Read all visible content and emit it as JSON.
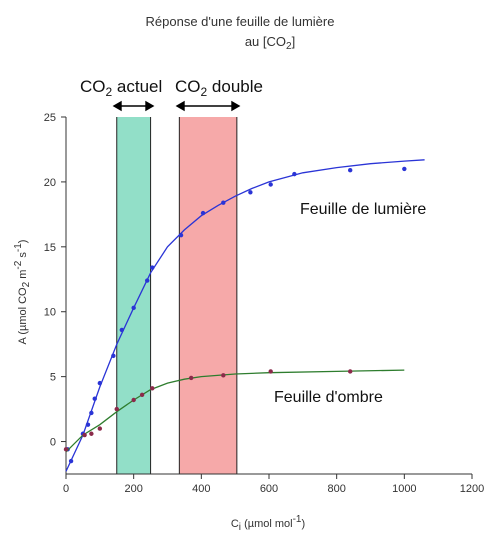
{
  "chart_data": {
    "type": "scatter",
    "title_line1": "Réponse d'une feuille de lumière",
    "title_line2_prefix": "au [CO",
    "title_line2_sub": "2",
    "title_line2_suffix": "]",
    "band_labels": {
      "current": {
        "prefix": "CO",
        "sub": "2",
        "suffix": " actuel"
      },
      "double": {
        "prefix": "CO",
        "sub": "2",
        "suffix": " double"
      }
    },
    "bands": [
      {
        "name": "current",
        "x_range": [
          150,
          250
        ],
        "color": "#7fd9be"
      },
      {
        "name": "double",
        "x_range": [
          335,
          505
        ],
        "color": "#f49a9a"
      }
    ],
    "ylabel_parts": {
      "a": "A (µmol CO",
      "b": "2",
      "c": " m",
      "d": "-2",
      "e": " s",
      "f": "-1",
      "g": ")"
    },
    "xlabel_parts": {
      "a": "C",
      "b": "i",
      "c": " (µmol mol",
      "d": "-1",
      "e": ")"
    },
    "xlim": [
      0,
      1200
    ],
    "ylim": [
      -2.5,
      25
    ],
    "xticks": [
      0,
      200,
      400,
      600,
      800,
      1000,
      1200
    ],
    "yticks": [
      0,
      5,
      10,
      15,
      20,
      25
    ],
    "series": [
      {
        "name": "Feuille de lumière",
        "color": "#2a34d6",
        "points": [
          [
            5,
            -0.6
          ],
          [
            15,
            -1.5
          ],
          [
            50,
            0.6
          ],
          [
            65,
            1.3
          ],
          [
            75,
            2.2
          ],
          [
            85,
            3.3
          ],
          [
            100,
            4.5
          ],
          [
            140,
            6.6
          ],
          [
            165,
            8.6
          ],
          [
            200,
            10.3
          ],
          [
            240,
            12.4
          ],
          [
            255,
            13.4
          ],
          [
            340,
            15.9
          ],
          [
            405,
            17.6
          ],
          [
            465,
            18.4
          ],
          [
            545,
            19.2
          ],
          [
            605,
            19.8
          ],
          [
            675,
            20.6
          ],
          [
            840,
            20.9
          ],
          [
            1000,
            21.0
          ]
        ],
        "curve": [
          [
            0,
            -2.3
          ],
          [
            50,
            0.5
          ],
          [
            100,
            4.2
          ],
          [
            150,
            7.5
          ],
          [
            200,
            10.3
          ],
          [
            250,
            13.0
          ],
          [
            300,
            15.0
          ],
          [
            350,
            16.3
          ],
          [
            400,
            17.4
          ],
          [
            450,
            18.2
          ],
          [
            500,
            18.9
          ],
          [
            550,
            19.5
          ],
          [
            600,
            20.0
          ],
          [
            700,
            20.7
          ],
          [
            800,
            21.1
          ],
          [
            900,
            21.4
          ],
          [
            1000,
            21.6
          ],
          [
            1060,
            21.7
          ]
        ]
      },
      {
        "name": "Feuille d'ombre",
        "color": "#2e7d2e",
        "points": [
          [
            0,
            -0.6
          ],
          [
            55,
            0.5
          ],
          [
            75,
            0.6
          ],
          [
            100,
            1.0
          ],
          [
            150,
            2.5
          ],
          [
            200,
            3.2
          ],
          [
            225,
            3.6
          ],
          [
            255,
            4.1
          ],
          [
            370,
            4.9
          ],
          [
            465,
            5.1
          ],
          [
            605,
            5.4
          ],
          [
            840,
            5.4
          ]
        ],
        "curve": [
          [
            0,
            -0.8
          ],
          [
            50,
            0.5
          ],
          [
            100,
            1.3
          ],
          [
            150,
            2.3
          ],
          [
            200,
            3.2
          ],
          [
            250,
            4.0
          ],
          [
            300,
            4.5
          ],
          [
            350,
            4.8
          ],
          [
            400,
            5.0
          ],
          [
            500,
            5.2
          ],
          [
            600,
            5.3
          ],
          [
            800,
            5.4
          ],
          [
            1000,
            5.5
          ]
        ]
      }
    ]
  }
}
